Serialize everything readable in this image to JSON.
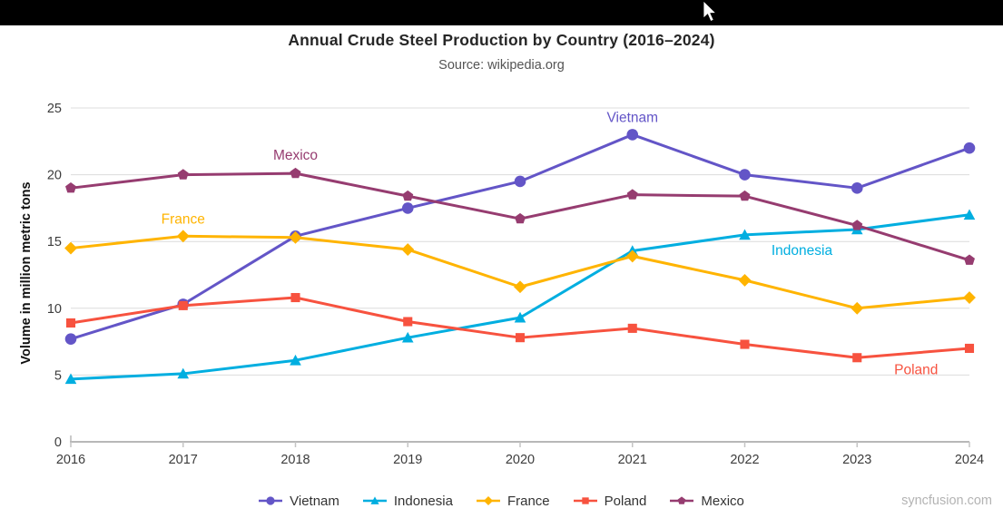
{
  "watermark": "syncfusion.com",
  "chart_data": {
    "type": "line",
    "title": "Annual Crude Steel Production by Country (2016–2024)",
    "subtitle": "Source: wikipedia.org",
    "xlabel": "",
    "ylabel": "Volume in million metric tons",
    "x": [
      2016,
      2017,
      2018,
      2019,
      2020,
      2021,
      2022,
      2023,
      2024
    ],
    "ylim": [
      0,
      25
    ],
    "yticks": [
      0,
      5,
      10,
      15,
      20,
      25
    ],
    "grid": "horizontal-only",
    "legend_position": "bottom",
    "series": [
      {
        "name": "Vietnam",
        "color": "#6355C7",
        "marker": "circle",
        "values": [
          7.7,
          10.3,
          15.4,
          17.5,
          19.5,
          23.0,
          20.0,
          19.0,
          22.0
        ],
        "annotation": {
          "at_x": 2021,
          "dx": 0,
          "dy": -14
        }
      },
      {
        "name": "Indonesia",
        "color": "#00AEE0",
        "marker": "triangle",
        "values": [
          4.7,
          5.1,
          6.1,
          7.8,
          9.3,
          14.3,
          15.5,
          15.9,
          17.0
        ],
        "annotation": {
          "at_x": 2022,
          "dx": 63,
          "dy": 22
        }
      },
      {
        "name": "France",
        "color": "#FFB400",
        "marker": "diamond",
        "values": [
          14.5,
          15.4,
          15.3,
          14.4,
          11.6,
          13.9,
          12.1,
          10.0,
          10.8
        ],
        "annotation": {
          "at_x": 2017,
          "dx": 0,
          "dy": -14
        }
      },
      {
        "name": "Poland",
        "color": "#F7523F",
        "marker": "square",
        "values": [
          8.9,
          10.2,
          10.8,
          9.0,
          7.8,
          8.5,
          7.3,
          6.3,
          7.0
        ],
        "annotation": {
          "at_x": 2023,
          "dx": 65,
          "dy": 18
        }
      },
      {
        "name": "Mexico",
        "color": "#963C70",
        "marker": "pentagon",
        "values": [
          19.0,
          20.0,
          20.1,
          18.4,
          16.7,
          18.5,
          18.4,
          16.2,
          13.6
        ],
        "annotation": {
          "at_x": 2018,
          "dx": 0,
          "dy": -15
        }
      }
    ]
  }
}
